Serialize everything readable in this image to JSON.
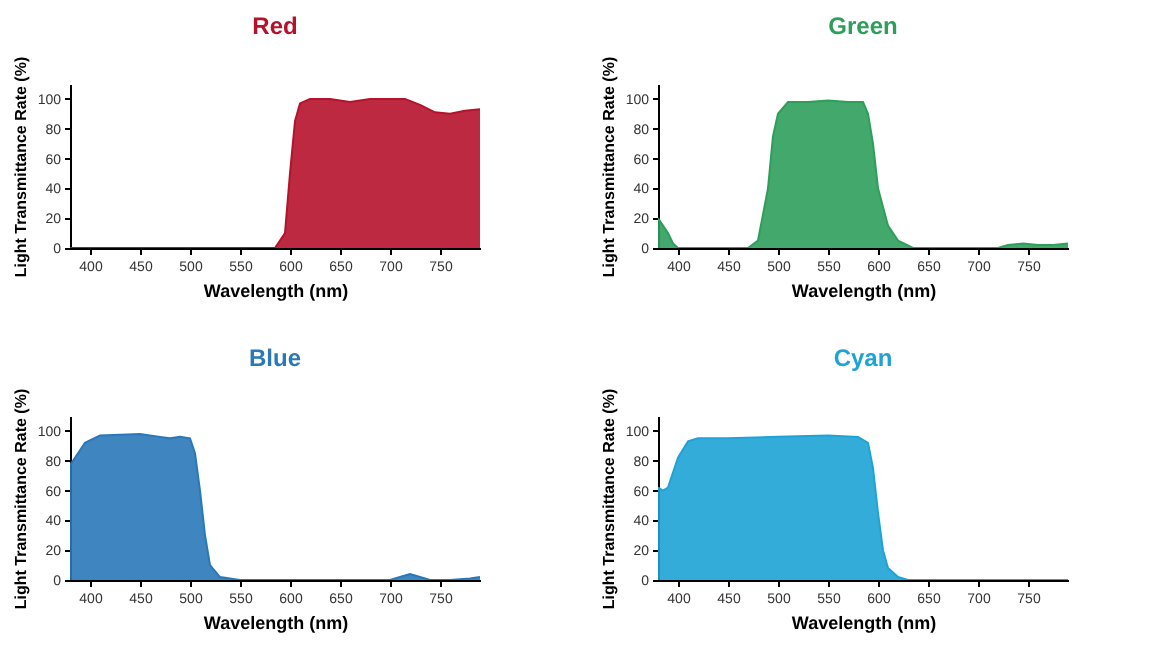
{
  "chart_data": [
    {
      "type": "area",
      "title": "Red",
      "xlabel": "Wavelength (nm)",
      "ylabel": "Light Transmittance Rate (%)",
      "xlim": [
        380,
        790
      ],
      "ylim": [
        0,
        110
      ],
      "xticks": [
        400,
        450,
        500,
        550,
        600,
        650,
        700,
        750
      ],
      "yticks": [
        0,
        20,
        40,
        60,
        80,
        100
      ],
      "grid": false,
      "series": [
        {
          "color": "#b5122b",
          "x": [
            380,
            585,
            595,
            600,
            605,
            610,
            620,
            640,
            660,
            680,
            700,
            715,
            730,
            745,
            760,
            775,
            790
          ],
          "values": [
            0,
            0,
            10,
            50,
            85,
            97,
            100,
            100,
            98,
            100,
            100,
            100,
            96,
            91,
            90,
            92,
            93
          ]
        }
      ]
    },
    {
      "type": "area",
      "title": "Green",
      "xlabel": "Wavelength (nm)",
      "ylabel": "Light Transmittance Rate (%)",
      "xlim": [
        380,
        790
      ],
      "ylim": [
        0,
        110
      ],
      "xticks": [
        400,
        450,
        500,
        550,
        600,
        650,
        700,
        750
      ],
      "yticks": [
        0,
        20,
        40,
        60,
        80,
        100
      ],
      "grid": false,
      "series": [
        {
          "color": "#2e9e5b",
          "x": [
            380,
            385,
            390,
            395,
            400,
            470,
            480,
            490,
            495,
            500,
            510,
            530,
            550,
            570,
            585,
            590,
            595,
            600,
            610,
            620,
            635,
            720,
            730,
            745,
            760,
            775,
            790
          ],
          "values": [
            20,
            15,
            10,
            3,
            0,
            0,
            5,
            40,
            75,
            90,
            98,
            98,
            99,
            98,
            98,
            90,
            70,
            40,
            15,
            5,
            0,
            0,
            2,
            3,
            2,
            2,
            3
          ]
        }
      ]
    },
    {
      "type": "area",
      "title": "Blue",
      "xlabel": "Wavelength (nm)",
      "ylabel": "Light Transmittance Rate (%)",
      "xlim": [
        380,
        790
      ],
      "ylim": [
        0,
        110
      ],
      "xticks": [
        400,
        450,
        500,
        550,
        600,
        650,
        700,
        750
      ],
      "yticks": [
        0,
        20,
        40,
        60,
        80,
        100
      ],
      "grid": false,
      "series": [
        {
          "color": "#2a78b8",
          "x": [
            380,
            385,
            395,
            410,
            450,
            470,
            480,
            490,
            500,
            505,
            510,
            515,
            520,
            530,
            550,
            700,
            710,
            720,
            730,
            740,
            760,
            780,
            790
          ],
          "values": [
            77,
            82,
            92,
            97,
            98,
            96,
            95,
            96,
            95,
            85,
            60,
            30,
            10,
            2,
            0,
            0,
            2,
            4,
            2,
            0,
            0,
            1,
            2
          ]
        }
      ]
    },
    {
      "type": "area",
      "title": "Cyan",
      "xlabel": "Wavelength (nm)",
      "ylabel": "Light Transmittance Rate (%)",
      "xlim": [
        380,
        790
      ],
      "ylim": [
        0,
        110
      ],
      "xticks": [
        400,
        450,
        500,
        550,
        600,
        650,
        700,
        750
      ],
      "yticks": [
        0,
        20,
        40,
        60,
        80,
        100
      ],
      "grid": false,
      "series": [
        {
          "color": "#1ea3d6",
          "x": [
            380,
            385,
            390,
            400,
            410,
            420,
            450,
            500,
            550,
            580,
            590,
            595,
            600,
            605,
            610,
            620,
            630,
            790
          ],
          "values": [
            62,
            60,
            62,
            82,
            93,
            95,
            95,
            96,
            97,
            96,
            92,
            75,
            45,
            20,
            8,
            2,
            0,
            0
          ]
        }
      ]
    }
  ]
}
